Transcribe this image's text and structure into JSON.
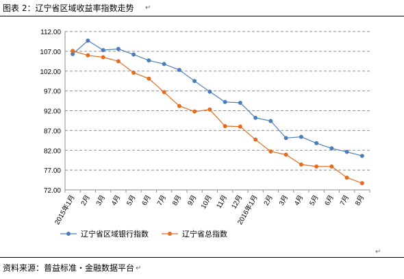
{
  "figure": {
    "title": "图表 2：辽宁省区域收益率指数走势",
    "source": "资料来源：普益标准・金融数据平台",
    "paragraph_mark": "↵"
  },
  "chart_data": {
    "type": "line",
    "title": "",
    "xlabel": "",
    "ylabel": "",
    "categories": [
      "2015年1月",
      "2月",
      "3月",
      "4月",
      "5月",
      "6月",
      "7月",
      "8月",
      "9月",
      "10月",
      "11月",
      "12月",
      "2016年1月",
      "2月",
      "3月",
      "4月",
      "5月",
      "6月",
      "7月",
      "8月"
    ],
    "ylim": [
      72.0,
      112.0
    ],
    "yticks": [
      "112.00",
      "107.00",
      "102.00",
      "97.00",
      "92.00",
      "87.00",
      "82.00",
      "77.00",
      "72.00"
    ],
    "grid": "horizontal",
    "legend_position": "bottom",
    "series": [
      {
        "name": "辽宁省区域银行指数",
        "color": "#4a7ebb",
        "values": [
          106.3,
          109.7,
          107.3,
          107.6,
          106.2,
          104.7,
          103.8,
          102.3,
          99.5,
          96.8,
          94.2,
          94.0,
          90.2,
          89.4,
          85.1,
          85.4,
          83.8,
          82.5,
          81.6,
          80.6
        ]
      },
      {
        "name": "辽宁省总指数",
        "color": "#e46c1e",
        "values": [
          107.1,
          106.0,
          105.5,
          104.5,
          101.6,
          100.1,
          96.7,
          93.2,
          91.8,
          92.3,
          88.1,
          88.0,
          84.7,
          81.7,
          80.9,
          78.4,
          77.9,
          77.9,
          75.1,
          73.7
        ]
      }
    ]
  }
}
